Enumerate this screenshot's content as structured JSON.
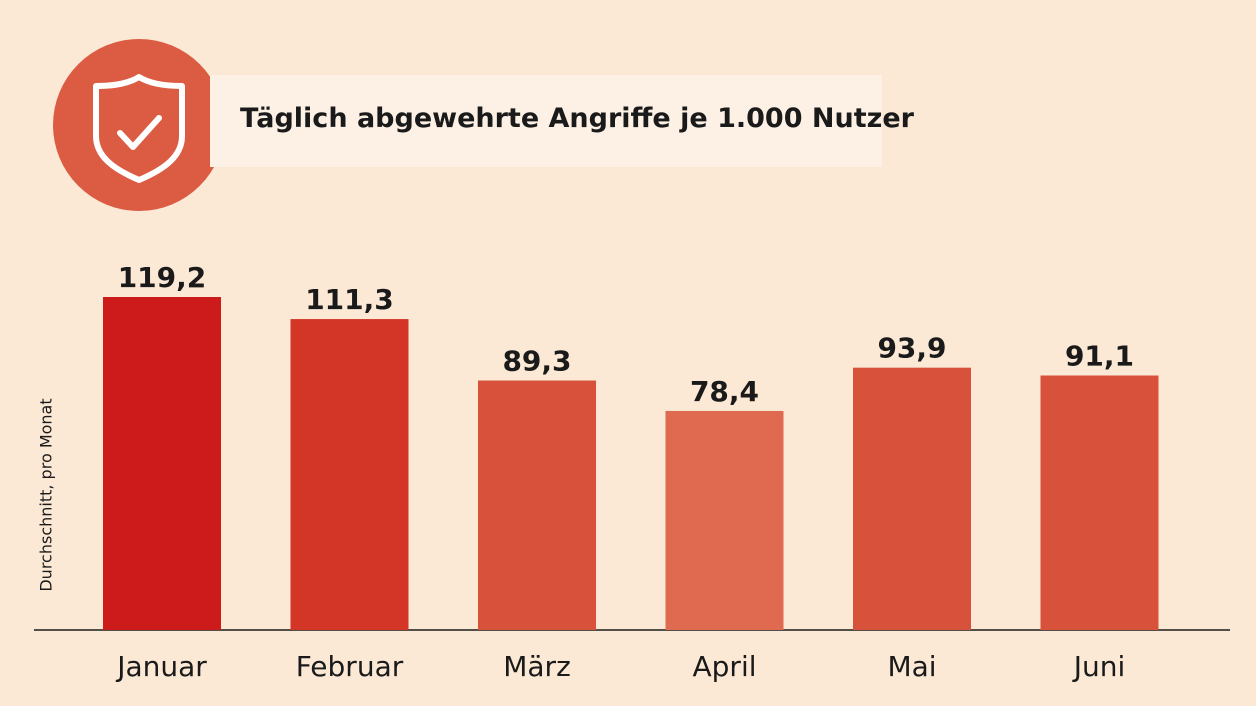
{
  "chart_data": {
    "type": "bar",
    "title": "Täglich abgewehrte Angriffe je 1.000 Nutzer",
    "ylabel": "Durchschnitt, pro Monat",
    "xlabel": "",
    "categories": [
      "Januar",
      "Februar",
      "März",
      "April",
      "Mai",
      "Juni"
    ],
    "values": [
      119.2,
      111.3,
      89.3,
      78.4,
      93.9,
      91.1
    ],
    "value_labels": [
      "119,2",
      "111,3",
      "89,3",
      "78,4",
      "93,9",
      "91,1"
    ],
    "bar_colors": [
      "#cd1a1a",
      "#d33626",
      "#d8513a",
      "#e06a50",
      "#d8513a",
      "#d8513a"
    ],
    "ylim": [
      0,
      120
    ],
    "grid": false,
    "legend": "none"
  },
  "logo": {
    "icon": "shield-check-icon",
    "color": "#dc5b43"
  },
  "colors": {
    "background": "#fbe8d5",
    "title_box": "#fdf1e6"
  }
}
